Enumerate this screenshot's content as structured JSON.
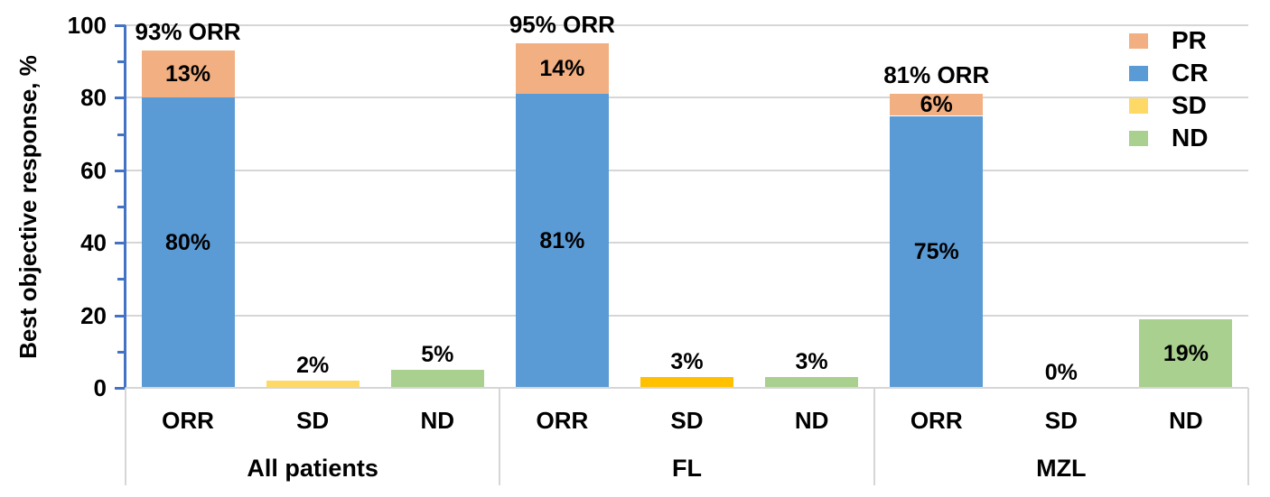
{
  "chart_data": {
    "type": "bar",
    "stacked": true,
    "title": "",
    "xlabel": "",
    "ylabel": "Best objective response, %",
    "ylim": [
      0,
      100
    ],
    "yticks": [
      0,
      20,
      40,
      60,
      80,
      100
    ],
    "minor_yticks": [
      10,
      30,
      50,
      70,
      90
    ],
    "grid": true,
    "legend_position": "top-right-inside",
    "axis_color": "#4472C4",
    "gridline_color": "#D6D6D6",
    "text_color": "#000000",
    "series_colors": {
      "PR": "#F2AF81",
      "CR": "#5B9BD5",
      "SD": "#FFD966",
      "ND": "#A9D08E"
    },
    "legend": [
      {
        "label": "PR",
        "color": "#F2AF81"
      },
      {
        "label": "CR",
        "color": "#5B9BD5"
      },
      {
        "label": "SD",
        "color": "#FFD966"
      },
      {
        "label": "ND",
        "color": "#A9D08E"
      }
    ],
    "groups": [
      {
        "label": "All patients",
        "bars": [
          {
            "category": "ORR",
            "annotation": "93% ORR",
            "segments": [
              {
                "series": "CR",
                "value": 80,
                "label": "80%",
                "label_pos": "inside"
              },
              {
                "series": "PR",
                "value": 13,
                "label": "13%",
                "label_pos": "inside"
              }
            ]
          },
          {
            "category": "SD",
            "segments": [
              {
                "series": "SD",
                "value": 2,
                "label": "2%",
                "label_pos": "above"
              }
            ]
          },
          {
            "category": "ND",
            "segments": [
              {
                "series": "ND",
                "value": 5,
                "label": "5%",
                "label_pos": "above"
              }
            ]
          }
        ]
      },
      {
        "label": "FL",
        "bars": [
          {
            "category": "ORR",
            "annotation": "95% ORR",
            "segments": [
              {
                "series": "CR",
                "value": 81,
                "label": "81%",
                "label_pos": "inside"
              },
              {
                "series": "PR",
                "value": 14,
                "label": "14%",
                "label_pos": "inside"
              }
            ]
          },
          {
            "category": "SD",
            "segments": [
              {
                "series": "SD",
                "value": 3,
                "label": "3%",
                "label_pos": "above",
                "color": "#FFC000"
              }
            ]
          },
          {
            "category": "ND",
            "segments": [
              {
                "series": "ND",
                "value": 3,
                "label": "3%",
                "label_pos": "above"
              }
            ]
          }
        ]
      },
      {
        "label": "MZL",
        "bars": [
          {
            "category": "ORR",
            "annotation": "81% ORR",
            "segments": [
              {
                "series": "CR",
                "value": 75,
                "label": "75%",
                "label_pos": "inside"
              },
              {
                "series": "PR",
                "value": 6,
                "label": "6%",
                "label_pos": "inside"
              }
            ]
          },
          {
            "category": "SD",
            "zero_label": "0%",
            "segments": []
          },
          {
            "category": "ND",
            "segments": [
              {
                "series": "ND",
                "value": 19,
                "label": "19%",
                "label_pos": "inside"
              }
            ]
          }
        ]
      }
    ]
  }
}
